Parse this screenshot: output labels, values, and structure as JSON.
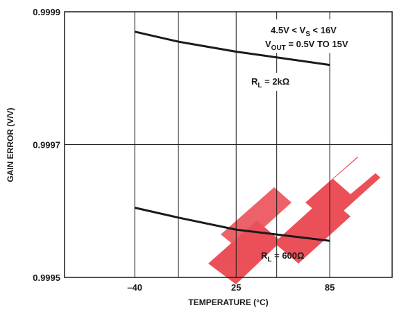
{
  "chart_data": {
    "type": "line",
    "xlabel": "TEMPERATURE (°C)",
    "ylabel": "GAIN ERROR (V/V)",
    "x_ticks": [
      "–40",
      "25",
      "85"
    ],
    "x_tick_values": [
      -40,
      25,
      85
    ],
    "y_ticks": [
      "0.9999",
      "0.9997",
      "0.9995"
    ],
    "y_tick_values": [
      0.9999,
      0.9997,
      0.9995
    ],
    "xlim": [
      -85,
      125
    ],
    "ylim": [
      0.9995,
      0.9999
    ],
    "grid": true,
    "vertical_gridlines": [
      -40,
      -12,
      25,
      51,
      85
    ],
    "series": [
      {
        "name": "RL = 2kΩ",
        "x": [
          -40,
          -12,
          25,
          85
        ],
        "y": [
          0.99987,
          0.999855,
          0.99984,
          0.99982
        ]
      },
      {
        "name": "RL = 600Ω",
        "x": [
          -40,
          -12,
          25,
          85
        ],
        "y": [
          0.999605,
          0.99959,
          0.999572,
          0.999555
        ]
      }
    ],
    "annotations": {
      "vs_pre": "4.5V < V",
      "vs_sub": "S",
      "vs_post": " < 16V",
      "vout_pre": "V",
      "vout_sub": "OUT",
      "vout_post": " = 0.5V TO 15V",
      "rl2k_pre": "R",
      "rl2k_sub": "L",
      "rl2k_post": " = 2kΩ",
      "rl600_pre": "R",
      "rl600_sub": "L",
      "rl600_post": " = 600Ω"
    },
    "colors": {
      "line": "#1a1a1a",
      "grid": "#1a1a1a",
      "watermark": "#e8323c"
    }
  }
}
